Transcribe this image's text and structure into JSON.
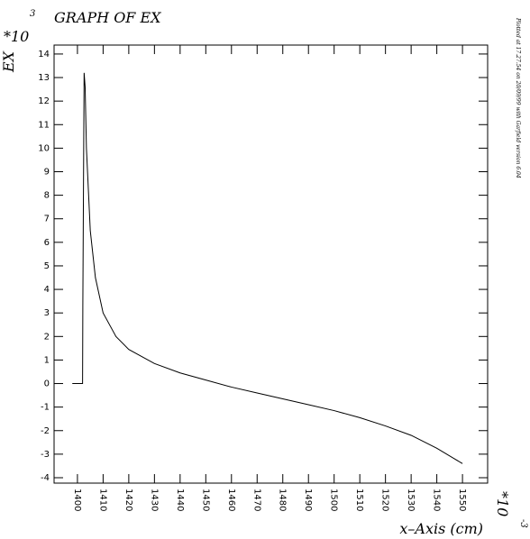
{
  "chart_data": {
    "type": "line",
    "title": "GRAPH OF EX",
    "y_label": "EX",
    "x_label": "x–Axis (cm)",
    "y_multiplier": "*10",
    "y_multiplier_exp": "3",
    "x_multiplier": "*10",
    "x_multiplier_exp": "-3",
    "side_note": "Plotted at 17.27.54 on 20/09/99 with Garfield version 6.04",
    "x": [
      1398,
      1402,
      1402.1,
      1402.6,
      1403,
      1403.5,
      1405,
      1407,
      1410,
      1415,
      1420,
      1430,
      1440,
      1450,
      1460,
      1470,
      1480,
      1490,
      1500,
      1510,
      1520,
      1530,
      1540,
      1550
    ],
    "series": [
      {
        "name": "EX",
        "color": "#000000",
        "values": [
          0,
          0,
          3.3,
          13.2,
          12.6,
          10,
          6.5,
          4.5,
          3.0,
          2.0,
          1.45,
          0.85,
          0.45,
          0.15,
          -0.15,
          -0.4,
          -0.65,
          -0.9,
          -1.15,
          -1.45,
          -1.8,
          -2.2,
          -2.75,
          -3.4
        ]
      }
    ],
    "xlim": [
      1390.9,
      1559.8
    ],
    "ylim": [
      -4.23,
      14.38
    ],
    "xticks": [
      1400,
      1410,
      1420,
      1430,
      1440,
      1450,
      1460,
      1470,
      1480,
      1490,
      1500,
      1510,
      1520,
      1530,
      1540,
      1550
    ],
    "yticks": [
      -4,
      -3,
      -2,
      -1,
      0,
      1,
      2,
      3,
      4,
      5,
      6,
      7,
      8,
      9,
      10,
      11,
      12,
      13,
      14
    ]
  }
}
